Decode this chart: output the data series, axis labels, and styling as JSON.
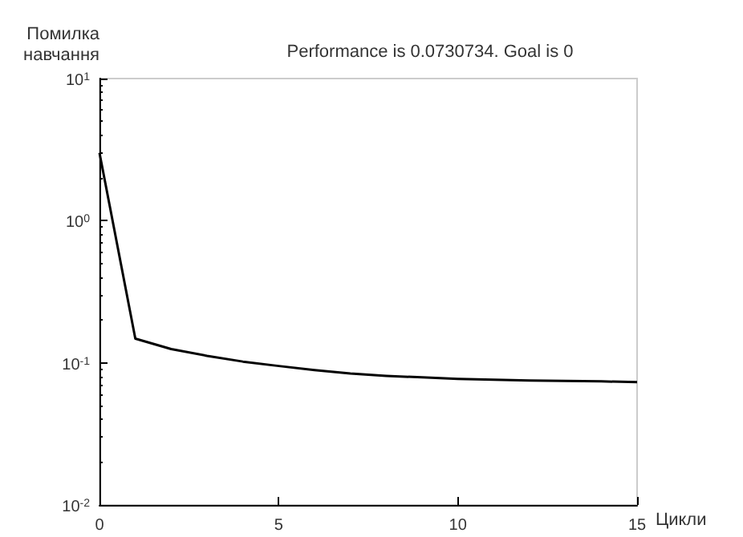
{
  "chart_data": {
    "type": "line",
    "title": "Performance is 0.0730734. Goal is 0",
    "xlabel": "Цикли",
    "ylabel": "Помилка навчання",
    "log": "y",
    "x": [
      0,
      1,
      2,
      3,
      4,
      5,
      6,
      7,
      8,
      9,
      10,
      11,
      12,
      13,
      14,
      15
    ],
    "series": [
      {
        "color": "#000000",
        "values": [
          3.0,
          0.148,
          0.125,
          0.112,
          0.102,
          0.095,
          0.089,
          0.084,
          0.081,
          0.079,
          0.077,
          0.076,
          0.075,
          0.0745,
          0.074,
          0.0731
        ]
      }
    ],
    "xlim": [
      0,
      15
    ],
    "xticks": [
      0,
      5,
      10,
      15
    ],
    "ylim": [
      0.01,
      10
    ],
    "yticks": [
      {
        "value": 0.01,
        "label": "10$^{-2}$"
      },
      {
        "value": 0.1,
        "label": "10$^{-1}$"
      },
      {
        "value": 1,
        "label": "10$^{0}$"
      },
      {
        "value": 10,
        "label": "10$^{1}$"
      }
    ],
    "grid": false,
    "marker": "none",
    "line_style": "solid"
  }
}
